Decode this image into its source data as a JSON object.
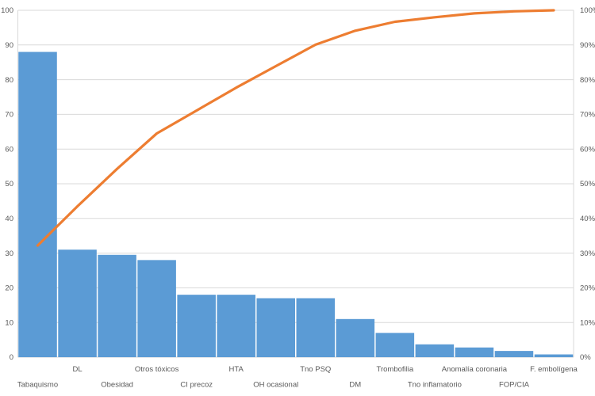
{
  "chart_data": {
    "type": "pareto",
    "description": "Pareto chart: bar series of risk-factor frequency with cumulative percentage line",
    "categories": [
      "Tabaquismo",
      "DL",
      "Obesidad",
      "Otros tóxicos",
      "CI precoz",
      "HTA",
      "OH ocasional",
      "Tno PSQ",
      "DM",
      "Trombofilia",
      "Tno inflamatorio",
      "Anomalía coronaria",
      "FOP/CIA",
      "F. embolígena"
    ],
    "series": [
      {
        "name": "frequency-bars",
        "type": "bar",
        "axis": "left",
        "values": [
          88,
          31,
          29.5,
          28,
          18,
          18,
          17,
          17,
          11,
          7,
          3.7,
          2.8,
          1.8,
          0.8
        ]
      },
      {
        "name": "cumulative-line",
        "type": "line",
        "axis": "right",
        "values": [
          32.2,
          43.5,
          54.3,
          64.5,
          71.1,
          77.7,
          83.9,
          90.1,
          94.1,
          96.7,
          98.0,
          99.1,
          99.7,
          100
        ]
      }
    ],
    "left_axis": {
      "min": 0,
      "max": 100,
      "step": 10,
      "tick_labels": [
        "0",
        "10",
        "20",
        "30",
        "40",
        "50",
        "60",
        "70",
        "80",
        "90",
        "100"
      ]
    },
    "right_axis": {
      "min": 0,
      "max": 100,
      "step": 10,
      "tick_labels": [
        "0%",
        "10%",
        "20%",
        "30%",
        "40%",
        "50%",
        "60%",
        "70%",
        "80%",
        "90%",
        "100%"
      ]
    },
    "title": "",
    "xlabel": "",
    "ylabel": "",
    "legend": {
      "visible": false
    },
    "grid": true,
    "colors": {
      "bar": "#5B9BD5",
      "line": "#ED7D31",
      "gridline": "#D9D9D9",
      "axis_border": "#D9D9D9",
      "axis_text": "#595959",
      "background": "#FFFFFF"
    }
  }
}
